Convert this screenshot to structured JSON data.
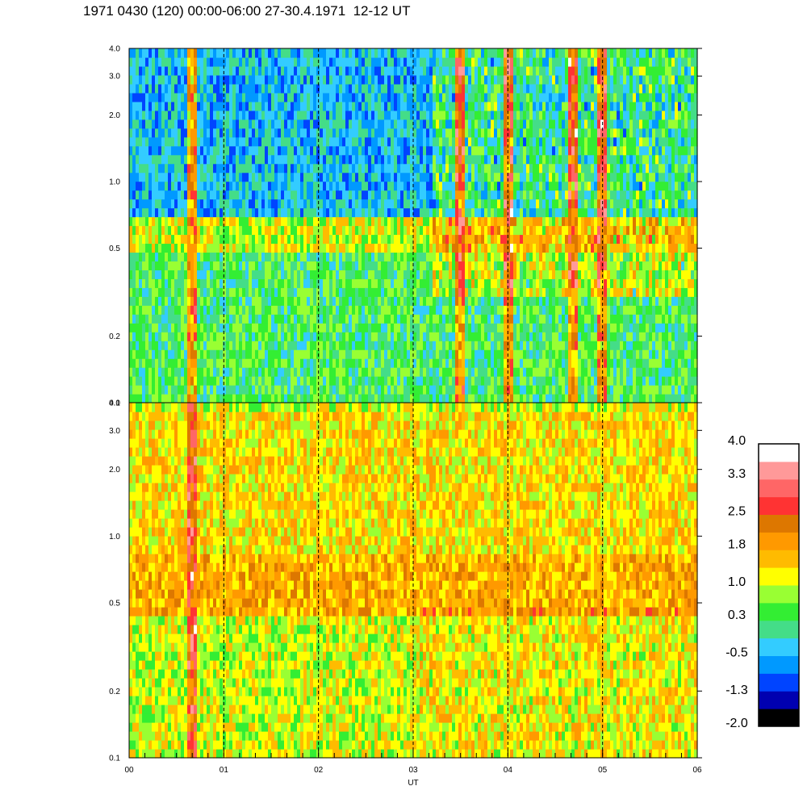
{
  "title": "1971 0430 (120) 00:00-06:00 27-30.4.1971  12-12 UT",
  "chart_data": [
    {
      "type": "heatmap",
      "panel": "top",
      "x_label": "UT",
      "x_ticks": [
        "00",
        "01",
        "02",
        "03",
        "04",
        "05",
        "06"
      ],
      "x_range_hours": [
        0,
        6
      ],
      "y_scale": "log",
      "y_range": [
        0.1,
        4.0
      ],
      "y_ticks": [
        "0.1",
        "0.2",
        "0.5",
        "1.0",
        "2.0",
        "3.0",
        "4.0"
      ],
      "y_tick_values": [
        0.1,
        0.2,
        0.5,
        1.0,
        2.0,
        3.0,
        4.0
      ],
      "vertical_dashed_lines_hours": [
        1,
        2,
        3,
        4,
        5
      ],
      "dominant_level_by_band": {
        "0.1-0.5": 0.3,
        "0.5-0.7": 1.0,
        "0.7-4.0": -0.5
      },
      "burst_hours": [
        0.65,
        3.5,
        4.0,
        4.7,
        5.0
      ],
      "burst_level": 1.8
    },
    {
      "type": "heatmap",
      "panel": "bottom",
      "x_label": "UT",
      "x_ticks": [
        "00",
        "01",
        "02",
        "03",
        "04",
        "05",
        "06"
      ],
      "x_range_hours": [
        0,
        6
      ],
      "y_scale": "log",
      "y_range": [
        0.1,
        4.0
      ],
      "y_ticks": [
        "0.1",
        "0.2",
        "0.5",
        "1.0",
        "2.0",
        "3.0",
        "4.0"
      ],
      "y_tick_values": [
        0.1,
        0.2,
        0.5,
        1.0,
        2.0,
        3.0,
        4.0
      ],
      "vertical_dashed_lines_hours": [
        1,
        2,
        3,
        4,
        5
      ],
      "dominant_level_by_band": {
        "0.1-0.45": 1.0,
        "0.45-0.8": 1.8,
        "0.8-3.5": 1.4,
        "3.5-4.0": 1.0
      },
      "burst_hours": [
        0.65
      ],
      "burst_level": 2.5
    }
  ],
  "colorbar": {
    "colors": [
      "#000000",
      "#0000b0",
      "#0044ff",
      "#0099ff",
      "#33ccff",
      "#44dd88",
      "#33ee33",
      "#99ff33",
      "#ffff00",
      "#ffbb00",
      "#ff9900",
      "#dd7700",
      "#ff3333",
      "#ff6666",
      "#ff9999",
      "#ffffff"
    ],
    "labels": [
      "4.0",
      "3.3",
      "2.5",
      "1.8",
      "1.0",
      "0.3",
      "-0.5",
      "-1.3",
      "-2.0"
    ],
    "label_values": [
      4.0,
      3.3,
      2.5,
      1.8,
      1.0,
      0.3,
      -0.5,
      -1.3,
      -2.0
    ]
  }
}
